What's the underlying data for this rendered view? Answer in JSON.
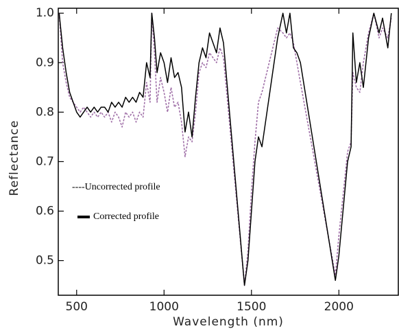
{
  "chart_data": {
    "type": "line",
    "xlabel": "Wavelength (nm)",
    "ylabel": "Reflectance",
    "xlim": [
      395,
      2340
    ],
    "ylim": [
      0.43,
      1.01
    ],
    "xticks": [
      500,
      1000,
      1500,
      2000
    ],
    "yticks": [
      0.5,
      0.6,
      0.7,
      0.8,
      0.9,
      {
        "value": 1,
        "label": "1.0"
      }
    ],
    "x": [
      400,
      420,
      440,
      460,
      480,
      500,
      520,
      540,
      560,
      580,
      600,
      620,
      640,
      660,
      680,
      700,
      720,
      740,
      760,
      780,
      800,
      820,
      840,
      860,
      880,
      900,
      920,
      930,
      945,
      960,
      980,
      1000,
      1020,
      1040,
      1060,
      1080,
      1100,
      1120,
      1140,
      1160,
      1180,
      1200,
      1220,
      1240,
      1260,
      1280,
      1300,
      1320,
      1340,
      1460,
      1480,
      1500,
      1520,
      1540,
      1560,
      1650,
      1680,
      1700,
      1720,
      1740,
      1760,
      1780,
      1980,
      2000,
      2050,
      2070,
      2080,
      2100,
      2120,
      2140,
      2170,
      2200,
      2230,
      2250,
      2280,
      2300
    ],
    "series": [
      {
        "name": "----Uncorrected profile",
        "color": "#a070a8",
        "dashed": true,
        "values": [
          1.0,
          0.9,
          0.86,
          0.83,
          0.82,
          0.81,
          0.8,
          0.81,
          0.8,
          0.79,
          0.8,
          0.79,
          0.8,
          0.79,
          0.8,
          0.78,
          0.8,
          0.79,
          0.77,
          0.8,
          0.79,
          0.8,
          0.78,
          0.8,
          0.79,
          0.86,
          0.82,
          1.0,
          0.92,
          0.82,
          0.87,
          0.84,
          0.8,
          0.85,
          0.81,
          0.82,
          0.78,
          0.71,
          0.75,
          0.74,
          0.8,
          0.88,
          0.9,
          0.89,
          0.92,
          0.91,
          0.9,
          0.93,
          0.91,
          0.45,
          0.52,
          0.64,
          0.74,
          0.82,
          0.84,
          0.97,
          0.96,
          0.95,
          0.96,
          0.94,
          0.9,
          0.86,
          0.47,
          0.55,
          0.72,
          0.74,
          0.88,
          0.85,
          0.84,
          0.9,
          0.96,
          1.0,
          0.95,
          0.97,
          0.95,
          0.99
        ]
      },
      {
        "name": "Corrected profile",
        "color": "#000000",
        "dashed": false,
        "values": [
          1.0,
          0.93,
          0.88,
          0.84,
          0.82,
          0.8,
          0.79,
          0.8,
          0.81,
          0.8,
          0.81,
          0.8,
          0.81,
          0.81,
          0.8,
          0.82,
          0.81,
          0.82,
          0.81,
          0.83,
          0.82,
          0.83,
          0.82,
          0.84,
          0.83,
          0.9,
          0.87,
          1.0,
          0.95,
          0.88,
          0.92,
          0.9,
          0.86,
          0.91,
          0.87,
          0.88,
          0.85,
          0.76,
          0.8,
          0.75,
          0.83,
          0.9,
          0.93,
          0.91,
          0.96,
          0.94,
          0.92,
          0.97,
          0.94,
          0.45,
          0.5,
          0.6,
          0.7,
          0.75,
          0.73,
          0.95,
          1.0,
          0.96,
          1.0,
          0.93,
          0.92,
          0.9,
          0.46,
          0.51,
          0.7,
          0.73,
          0.96,
          0.86,
          0.9,
          0.85,
          0.95,
          1.0,
          0.96,
          0.99,
          0.93,
          1.0
        ]
      }
    ]
  }
}
